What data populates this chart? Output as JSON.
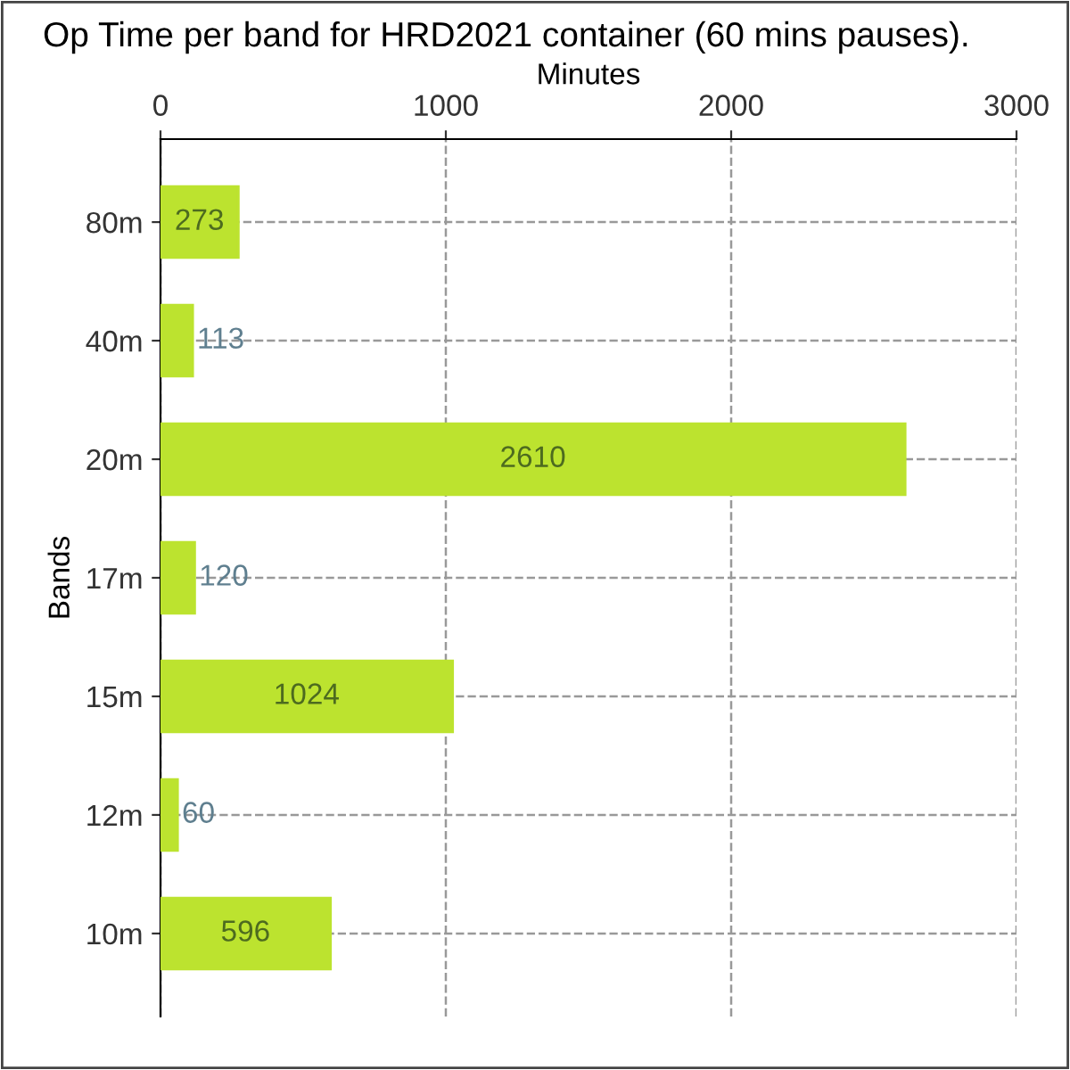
{
  "chart_data": {
    "type": "bar",
    "orientation": "horizontal",
    "title": "Op Time per band for HRD2021 container (60 mins pauses).",
    "xlabel": "Minutes",
    "ylabel": "Bands",
    "categories": [
      "80m",
      "40m",
      "20m",
      "17m",
      "15m",
      "12m",
      "10m"
    ],
    "values": [
      273,
      113,
      2610,
      120,
      1024,
      60,
      596
    ],
    "color": "#bce32f",
    "xlim": [
      0,
      3000
    ],
    "xticks": [
      0,
      1000,
      2000,
      3000
    ],
    "grid": true,
    "data_labels": true
  }
}
